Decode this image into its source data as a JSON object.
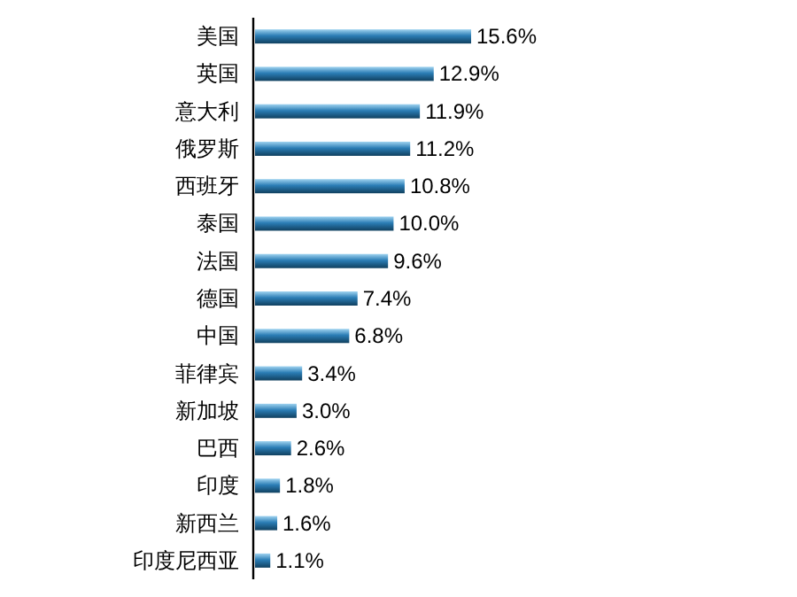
{
  "chart_data": {
    "type": "bar",
    "orientation": "horizontal",
    "color": "#2b7db5",
    "categories": [
      "美国",
      "英国",
      "意大利",
      "俄罗斯",
      "西班牙",
      "泰国",
      "法国",
      "德国",
      "中国",
      "菲律宾",
      "新加坡",
      "巴西",
      "印度",
      "新西兰",
      "印度尼西亚"
    ],
    "values": [
      15.6,
      12.9,
      11.9,
      11.2,
      10.8,
      10.0,
      9.6,
      7.4,
      6.8,
      3.4,
      3.0,
      2.6,
      1.8,
      1.6,
      1.1
    ],
    "value_labels": [
      "15.6%",
      "12.9%",
      "11.9%",
      "11.2%",
      "10.8%",
      "10.0%",
      "9.6%",
      "7.4%",
      "6.8%",
      "3.4%",
      "3.0%",
      "2.6%",
      "1.8%",
      "1.6%",
      "1.1%"
    ]
  }
}
